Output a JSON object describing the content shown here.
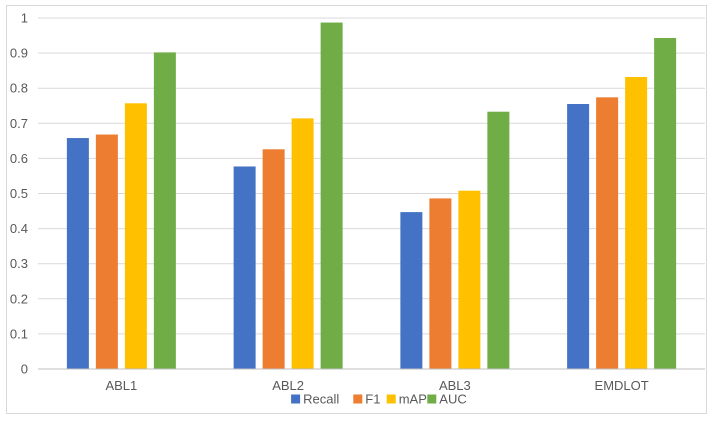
{
  "chart_data": {
    "type": "bar",
    "title": "",
    "xlabel": "",
    "ylabel": "",
    "categories": [
      "ABL1",
      "ABL2",
      "ABL3",
      "EMDLOT"
    ],
    "series": [
      {
        "name": "Recall",
        "color": "#4472c4",
        "values": [
          0.658,
          0.577,
          0.447,
          0.755
        ]
      },
      {
        "name": "F1",
        "color": "#ed7d31",
        "values": [
          0.668,
          0.626,
          0.486,
          0.774
        ]
      },
      {
        "name": "mAP",
        "color": "#ffc000",
        "values": [
          0.757,
          0.714,
          0.508,
          0.832
        ]
      },
      {
        "name": "AUC",
        "color": "#70ad47",
        "values": [
          0.902,
          0.987,
          0.733,
          0.943
        ]
      }
    ],
    "ylim": [
      0,
      1
    ],
    "yticks": [
      "0",
      "0.1",
      "0.2",
      "0.3",
      "0.4",
      "0.5",
      "0.6",
      "0.7",
      "0.8",
      "0.9",
      "1"
    ],
    "grid": true,
    "legend_position": "bottom"
  }
}
